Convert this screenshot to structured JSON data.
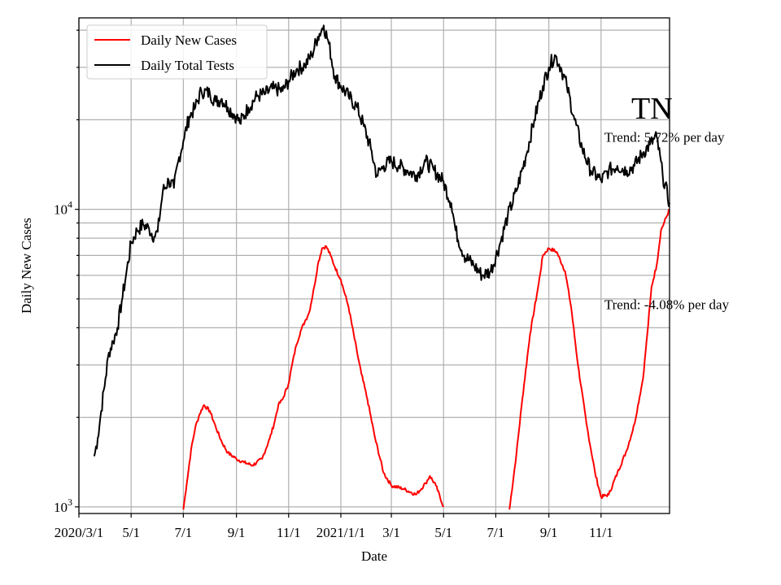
{
  "chart_data": {
    "type": "line",
    "title": "TN",
    "xlabel": "Date",
    "ylabel": "Daily New Cases",
    "yscale": "log",
    "ylim": [
      950,
      44000
    ],
    "xlim": [
      "2020-03-01",
      "2022-01-20"
    ],
    "grid": true,
    "legend_position": "upper-left",
    "x_ticks": [
      {
        "date": "2020-03-01",
        "label": "2020/3/1"
      },
      {
        "date": "2020-05-01",
        "label": "5/1"
      },
      {
        "date": "2020-07-01",
        "label": "7/1"
      },
      {
        "date": "2020-09-01",
        "label": "9/1"
      },
      {
        "date": "2020-11-01",
        "label": "11/1"
      },
      {
        "date": "2021-01-01",
        "label": "2021/1/1"
      },
      {
        "date": "2021-03-01",
        "label": "3/1"
      },
      {
        "date": "2021-05-01",
        "label": "5/1"
      },
      {
        "date": "2021-07-01",
        "label": "7/1"
      },
      {
        "date": "2021-09-01",
        "label": "9/1"
      },
      {
        "date": "2021-11-01",
        "label": "11/1"
      }
    ],
    "y_major_ticks": [
      {
        "value": 1000,
        "base": "10",
        "exp": "3"
      },
      {
        "value": 10000,
        "base": "10",
        "exp": "4"
      }
    ],
    "annotations": [
      {
        "text": "Trend: 5.72% per day",
        "date": "2021-11-01",
        "value": 17500
      },
      {
        "text": "Trend: -4.08% per day",
        "date": "2021-11-01",
        "value": 4800
      }
    ],
    "series": [
      {
        "name": "Daily New Cases",
        "color": "#ff0000",
        "points": [
          [
            "2020-07-01",
            980
          ],
          [
            "2020-07-05",
            1200
          ],
          [
            "2020-07-10",
            1550
          ],
          [
            "2020-07-15",
            1850
          ],
          [
            "2020-07-20",
            2050
          ],
          [
            "2020-07-25",
            2200
          ],
          [
            "2020-08-01",
            2100
          ],
          [
            "2020-08-08",
            1850
          ],
          [
            "2020-08-15",
            1650
          ],
          [
            "2020-08-22",
            1520
          ],
          [
            "2020-09-01",
            1450
          ],
          [
            "2020-09-10",
            1410
          ],
          [
            "2020-09-20",
            1380
          ],
          [
            "2020-10-01",
            1450
          ],
          [
            "2020-10-10",
            1700
          ],
          [
            "2020-10-15",
            1900
          ],
          [
            "2020-10-20",
            2200
          ],
          [
            "2020-10-25",
            2300
          ],
          [
            "2020-11-01",
            2600
          ],
          [
            "2020-11-05",
            3000
          ],
          [
            "2020-11-10",
            3500
          ],
          [
            "2020-11-15",
            3900
          ],
          [
            "2020-11-20",
            4200
          ],
          [
            "2020-11-25",
            4500
          ],
          [
            "2020-12-01",
            5500
          ],
          [
            "2020-12-05",
            6500
          ],
          [
            "2020-12-10",
            7400
          ],
          [
            "2020-12-15",
            7500
          ],
          [
            "2020-12-20",
            7000
          ],
          [
            "2020-12-25",
            6400
          ],
          [
            "2021-01-01",
            5800
          ],
          [
            "2021-01-10",
            4700
          ],
          [
            "2021-01-20",
            3300
          ],
          [
            "2021-01-25",
            2800
          ],
          [
            "2021-02-01",
            2300
          ],
          [
            "2021-02-10",
            1700
          ],
          [
            "2021-02-20",
            1300
          ],
          [
            "2021-03-01",
            1180
          ],
          [
            "2021-03-15",
            1150
          ],
          [
            "2021-03-30",
            1100
          ],
          [
            "2021-04-10",
            1200
          ],
          [
            "2021-04-15",
            1270
          ],
          [
            "2021-04-22",
            1180
          ],
          [
            "2021-05-01",
            1000
          ]
        ],
        "points_segment_2": [
          [
            "2021-07-17",
            980
          ],
          [
            "2021-07-25",
            1500
          ],
          [
            "2021-08-01",
            2300
          ],
          [
            "2021-08-10",
            3800
          ],
          [
            "2021-08-20",
            5600
          ],
          [
            "2021-08-25",
            7000
          ],
          [
            "2021-09-01",
            7400
          ],
          [
            "2021-09-10",
            7200
          ],
          [
            "2021-09-20",
            6200
          ],
          [
            "2021-09-27",
            4700
          ],
          [
            "2021-10-05",
            3000
          ],
          [
            "2021-10-15",
            1900
          ],
          [
            "2021-10-25",
            1300
          ],
          [
            "2021-11-01",
            1080
          ],
          [
            "2021-11-10",
            1100
          ],
          [
            "2021-11-20",
            1300
          ],
          [
            "2021-12-01",
            1550
          ],
          [
            "2021-12-10",
            1900
          ],
          [
            "2021-12-20",
            2700
          ],
          [
            "2021-12-25",
            3800
          ],
          [
            "2021-12-30",
            5500
          ],
          [
            "2022-01-05",
            6500
          ],
          [
            "2022-01-10",
            8500
          ],
          [
            "2022-01-20",
            10000
          ]
        ]
      },
      {
        "name": "Daily Total Tests",
        "color": "#000000",
        "points": [
          [
            "2020-03-19",
            1480
          ],
          [
            "2020-03-23",
            1700
          ],
          [
            "2020-03-27",
            2100
          ],
          [
            "2020-04-01",
            2700
          ],
          [
            "2020-04-05",
            3300
          ],
          [
            "2020-04-10",
            3600
          ],
          [
            "2020-04-15",
            4000
          ],
          [
            "2020-04-20",
            4900
          ],
          [
            "2020-04-25",
            6000
          ],
          [
            "2020-05-01",
            7700
          ],
          [
            "2020-05-08",
            8500
          ],
          [
            "2020-05-15",
            8900
          ],
          [
            "2020-05-22",
            8600
          ],
          [
            "2020-05-28",
            8100
          ],
          [
            "2020-06-01",
            8400
          ],
          [
            "2020-06-07",
            11500
          ],
          [
            "2020-06-14",
            12500
          ],
          [
            "2020-06-20",
            11800
          ],
          [
            "2020-06-25",
            14500
          ],
          [
            "2020-07-01",
            17000
          ],
          [
            "2020-07-08",
            20500
          ],
          [
            "2020-07-15",
            22000
          ],
          [
            "2020-07-22",
            25000
          ],
          [
            "2020-08-01",
            24500
          ],
          [
            "2020-08-08",
            23000
          ],
          [
            "2020-08-15",
            23500
          ],
          [
            "2020-08-22",
            22000
          ],
          [
            "2020-09-01",
            20500
          ],
          [
            "2020-09-05",
            19500
          ],
          [
            "2020-09-15",
            22000
          ],
          [
            "2020-09-25",
            24000
          ],
          [
            "2020-10-05",
            24500
          ],
          [
            "2020-10-15",
            25500
          ],
          [
            "2020-10-25",
            25000
          ],
          [
            "2020-11-01",
            27000
          ],
          [
            "2020-11-10",
            29500
          ],
          [
            "2020-11-20",
            30500
          ],
          [
            "2020-11-28",
            33000
          ],
          [
            "2020-12-05",
            38000
          ],
          [
            "2020-12-12",
            41500
          ],
          [
            "2020-12-18",
            36000
          ],
          [
            "2020-12-25",
            28000
          ],
          [
            "2021-01-01",
            26000
          ],
          [
            "2021-01-10",
            24000
          ],
          [
            "2021-01-20",
            22000
          ],
          [
            "2021-01-28",
            19000
          ],
          [
            "2021-02-05",
            16000
          ],
          [
            "2021-02-12",
            13000
          ],
          [
            "2021-02-20",
            14000
          ],
          [
            "2021-03-01",
            14500
          ],
          [
            "2021-03-10",
            14000
          ],
          [
            "2021-03-20",
            13500
          ],
          [
            "2021-03-30",
            13000
          ],
          [
            "2021-04-10",
            14500
          ],
          [
            "2021-04-20",
            13500
          ],
          [
            "2021-04-30",
            12500
          ],
          [
            "2021-05-10",
            10500
          ],
          [
            "2021-05-15",
            8500
          ],
          [
            "2021-05-25",
            7000
          ],
          [
            "2021-06-05",
            6500
          ],
          [
            "2021-06-15",
            6000
          ],
          [
            "2021-06-25",
            6200
          ],
          [
            "2021-07-05",
            7500
          ],
          [
            "2021-07-15",
            9500
          ],
          [
            "2021-07-25",
            11500
          ],
          [
            "2021-08-05",
            15000
          ],
          [
            "2021-08-15",
            20000
          ],
          [
            "2021-08-25",
            26000
          ],
          [
            "2021-09-01",
            30000
          ],
          [
            "2021-09-08",
            33000
          ],
          [
            "2021-09-15",
            30000
          ],
          [
            "2021-09-22",
            26000
          ],
          [
            "2021-10-01",
            20000
          ],
          [
            "2021-10-10",
            16000
          ],
          [
            "2021-10-20",
            13500
          ],
          [
            "2021-11-01",
            12500
          ],
          [
            "2021-11-10",
            13500
          ],
          [
            "2021-11-20",
            14000
          ],
          [
            "2021-12-01",
            13500
          ],
          [
            "2021-12-10",
            14000
          ],
          [
            "2021-12-20",
            15500
          ],
          [
            "2021-12-28",
            16500
          ],
          [
            "2022-01-05",
            17500
          ],
          [
            "2022-01-12",
            13000
          ],
          [
            "2022-01-20",
            10500
          ]
        ]
      }
    ]
  }
}
